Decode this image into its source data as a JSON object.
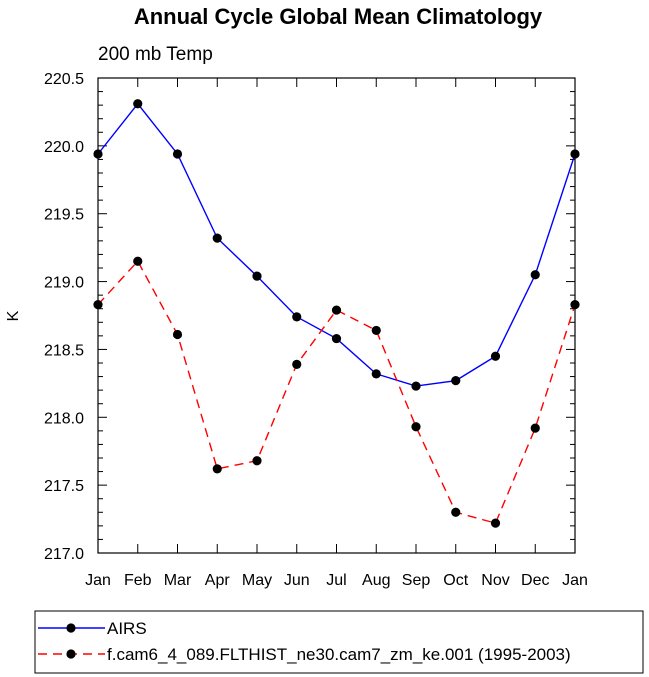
{
  "chart_data": {
    "type": "line",
    "title": "Annual Cycle Global Mean Climatology",
    "subtitle": "200 mb Temp",
    "xlabel": "",
    "ylabel": "K",
    "categories": [
      "Jan",
      "Feb",
      "Mar",
      "Apr",
      "May",
      "Jun",
      "Jul",
      "Aug",
      "Sep",
      "Oct",
      "Nov",
      "Dec",
      "Jan"
    ],
    "ylim": [
      217.0,
      220.5
    ],
    "yticks": [
      "217.0",
      "217.5",
      "218.0",
      "218.5",
      "219.0",
      "219.5",
      "220.0",
      "220.5"
    ],
    "series": [
      {
        "name": "AIRS",
        "color": "#0000ff",
        "dash": "solid",
        "values": [
          219.94,
          220.31,
          219.94,
          219.32,
          219.04,
          218.74,
          218.58,
          218.32,
          218.23,
          218.27,
          218.45,
          219.05,
          219.94
        ]
      },
      {
        "name": "f.cam6_4_089.FLTHIST_ne30.cam7_zm_ke.001 (1995-2003)",
        "color": "#ff0000",
        "dash": "dashed",
        "values": [
          218.83,
          219.15,
          218.61,
          217.62,
          217.68,
          218.39,
          218.79,
          218.64,
          217.93,
          217.3,
          217.22,
          217.92,
          218.83
        ]
      }
    ],
    "grid": false,
    "legend": "bottom"
  }
}
